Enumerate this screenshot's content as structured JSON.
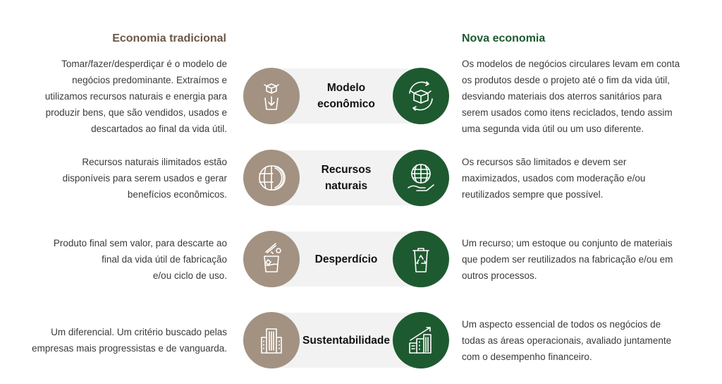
{
  "headers": {
    "left": "Economia tradicional",
    "right": "Nova economia"
  },
  "colors": {
    "traditional": "#a39282",
    "new": "#1e5a30",
    "bar": "#f2f2f2",
    "left_header": "#6b5848"
  },
  "rows": [
    {
      "label": [
        "Modelo",
        "econômico"
      ],
      "left_icon": "box-to-trash-icon",
      "right_icon": "box-recycle-cycle-icon",
      "left_text": [
        "Tomar/fazer/desperdiçar é o modelo de",
        "negócios predominante. Extraímos e",
        "utilizamos recursos naturais e energia para",
        "produzir bens, que são vendidos, usados e",
        "descartados ao final da vida útil."
      ],
      "right_text": [
        "Os modelos de negócios circulares levam em conta",
        "os produtos desde o projeto até o fim da vida útil,",
        "desviando materiais dos aterros sanitários para",
        "serem usados como itens reciclados, tendo assim",
        "uma segunda vida útil ou um uso diferente."
      ]
    },
    {
      "label": [
        "Recursos",
        "naturais"
      ],
      "left_icon": "half-globe-icon",
      "right_icon": "globe-in-hand-icon",
      "left_text": [
        "Recursos naturais ilimitados estão",
        "disponíveis para serem usados e gerar",
        "benefícios econômicos."
      ],
      "right_text": [
        "Os recursos são limitados e devem ser",
        "maximizados, usados com moderação e/ou",
        "reutilizados sempre que possível."
      ]
    },
    {
      "label": [
        "Desperdício"
      ],
      "left_icon": "waste-bin-icon",
      "right_icon": "recycle-bin-icon",
      "left_text": [
        "Produto final sem valor, para descarte ao",
        "final da vida útil de fabricação",
        "e/ou ciclo de uso."
      ],
      "right_text": [
        "Um recurso; um estoque ou conjunto de materiais",
        "que podem ser reutilizados na fabricação e/ou em",
        "outros processos."
      ]
    },
    {
      "label": [
        "Sustentabilidade"
      ],
      "left_icon": "buildings-icon",
      "right_icon": "buildings-growth-icon",
      "left_text": [
        "Um diferencial. Um critério buscado pelas",
        "empresas mais progressistas e de vanguarda."
      ],
      "right_text": [
        "Um aspecto essencial de todos os negócios de",
        "todas as áreas operacionais, avaliado juntamente",
        "com o desempenho financeiro."
      ]
    }
  ]
}
